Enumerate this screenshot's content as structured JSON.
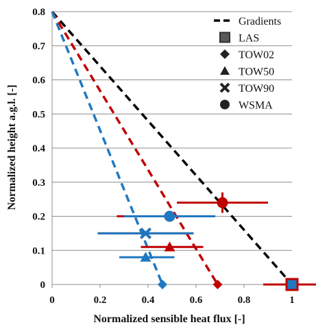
{
  "chart_data": {
    "type": "scatter",
    "xlabel": "Normalized sensible heat flux [-]",
    "ylabel": "Normalized height a.g.l. [-]",
    "xlim": [
      0,
      1
    ],
    "ylim": [
      0,
      0.8
    ],
    "x_ticks": [
      "0",
      "0.2",
      "0.4",
      "0.6",
      "0.8",
      "1"
    ],
    "y_ticks": [
      "0",
      "0.1",
      "0.2",
      "0.3",
      "0.4",
      "0.5",
      "0.6",
      "0.7",
      "0.8"
    ],
    "grid": "horizontal",
    "legend_position": "top-right",
    "legend": [
      {
        "label": "Gradients",
        "symbol": "dashed-line"
      },
      {
        "label": "LAS",
        "symbol": "square"
      },
      {
        "label": "TOW02",
        "symbol": "diamond"
      },
      {
        "label": "TOW50",
        "symbol": "triangle"
      },
      {
        "label": "TOW90",
        "symbol": "cross"
      },
      {
        "label": "WSMA",
        "symbol": "circle"
      }
    ],
    "colors": {
      "black": "#000000",
      "red": "#c00000",
      "blue": "#1f78c1",
      "legend_gray": "#595959"
    },
    "gradient_lines": [
      {
        "color": "black",
        "points": [
          [
            0,
            0.8
          ],
          [
            1.0,
            0
          ]
        ]
      },
      {
        "color": "red",
        "points": [
          [
            0,
            0.8
          ],
          [
            0.69,
            0
          ]
        ]
      },
      {
        "color": "blue",
        "points": [
          [
            0,
            0.8
          ],
          [
            0.46,
            0
          ]
        ]
      }
    ],
    "series": [
      {
        "marker": "square",
        "points": [
          {
            "color": "red",
            "x": 1.0,
            "y": 0.0,
            "xerr": [
              0.88,
              1.1
            ]
          }
        ]
      },
      {
        "marker": "diamond",
        "points": [
          {
            "color": "red",
            "x": 0.69,
            "y": 0.0
          },
          {
            "color": "blue",
            "x": 0.46,
            "y": 0.0
          }
        ]
      },
      {
        "marker": "triangle",
        "points": [
          {
            "color": "red",
            "x": 0.49,
            "y": 0.11,
            "xerr": [
              0.37,
              0.63
            ]
          },
          {
            "color": "blue",
            "x": 0.39,
            "y": 0.08,
            "xerr": [
              0.28,
              0.51
            ]
          }
        ]
      },
      {
        "marker": "cross",
        "points": [
          {
            "color": "red",
            "x": 0.39,
            "y": 0.15,
            "xerr": [
              0.19,
              0.59
            ]
          },
          {
            "color": "blue",
            "x": 0.39,
            "y": 0.15,
            "xerr": [
              0.19,
              0.59
            ]
          }
        ]
      },
      {
        "marker": "circle",
        "points": [
          {
            "color": "red",
            "x": 0.71,
            "y": 0.24,
            "xerr": [
              0.52,
              0.9
            ],
            "yerr": [
              0.21,
              0.27
            ]
          },
          {
            "color": "red",
            "x": 0.49,
            "y": 0.2,
            "xerr": [
              0.27,
              0.67
            ],
            "yerr": [
              0.19,
              0.21
            ]
          },
          {
            "color": "blue",
            "x": 0.49,
            "y": 0.2,
            "xerr": [
              0.3,
              0.68
            ],
            "yerr": [
              0.19,
              0.21
            ]
          }
        ]
      }
    ]
  }
}
